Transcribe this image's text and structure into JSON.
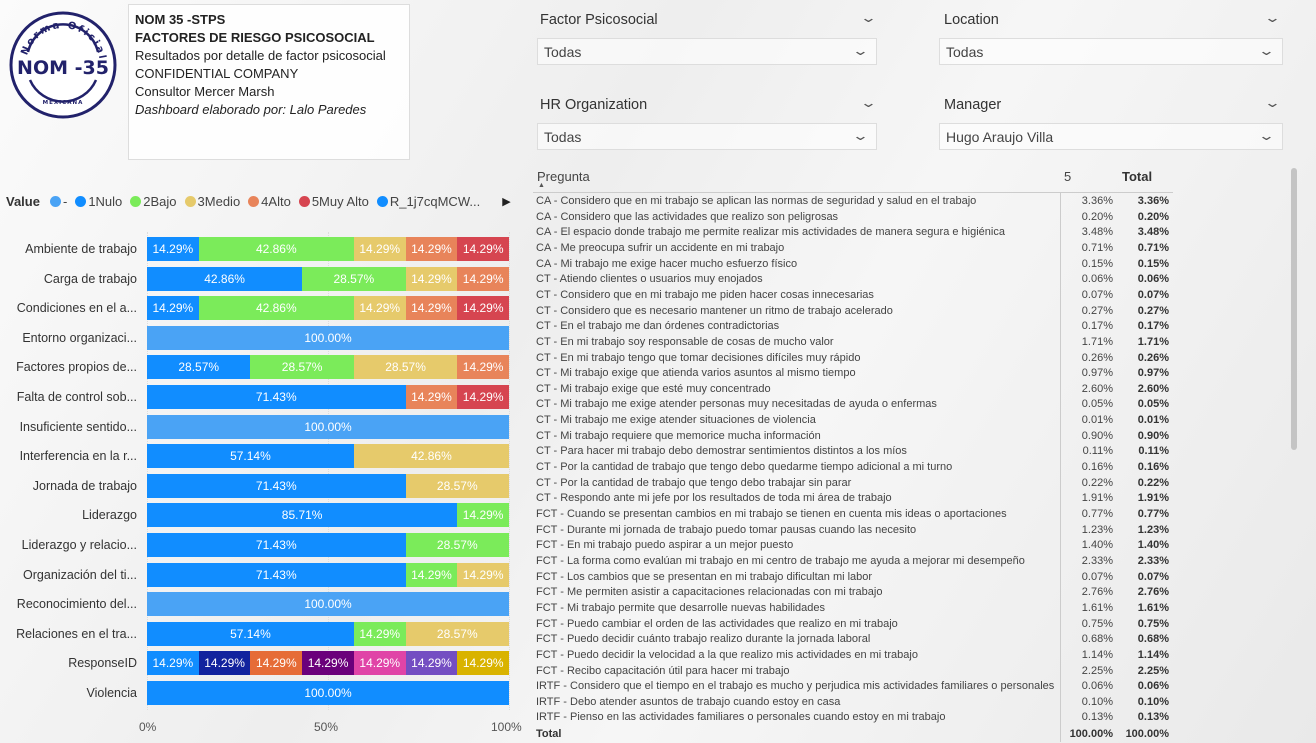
{
  "logo": {
    "text_top": "Norma Oficial",
    "text_main": "NOM -35",
    "text_bottom": "MEXICANA"
  },
  "header": {
    "line1": "NOM 35 -STPS",
    "line2": "FACTORES DE RIESGO PSICOSOCIAL",
    "line3": "Resultados por detalle de factor psicosocial",
    "line4": "CONFIDENTIAL COMPANY",
    "line5": "Consultor Mercer Marsh",
    "line6": "Dashboard elaborado por: Lalo Paredes"
  },
  "slicers": [
    {
      "title": "Factor Psicosocial",
      "value": "Todas"
    },
    {
      "title": "Location",
      "value": "Todas"
    },
    {
      "title": "HR Organization",
      "value": "Todas"
    },
    {
      "title": "Manager",
      "value": "Hugo Araujo Villa"
    }
  ],
  "chart_data": {
    "type": "bar",
    "orientation": "horizontal-100%-stacked",
    "legend_title": "Value",
    "legend": [
      {
        "name": "-",
        "color": "#4aa3f5"
      },
      {
        "name": "1Nulo",
        "color": "#118dff"
      },
      {
        "name": "2Bajo",
        "color": "#7beb5a"
      },
      {
        "name": "3Medio",
        "color": "#e6ca6b"
      },
      {
        "name": "4Alto",
        "color": "#e8845a"
      },
      {
        "name": "5Muy Alto",
        "color": "#d64550"
      },
      {
        "name": "R_1j7cqMCW...",
        "color": "#118dff"
      }
    ],
    "xticks": [
      "0%",
      "50%",
      "100%"
    ],
    "xlim": [
      0,
      100
    ],
    "rows": [
      {
        "category": "Ambiente de trabajo",
        "segments": [
          {
            "s": "1Nulo",
            "v": 14.29,
            "label": "14.29%"
          },
          {
            "s": "2Bajo",
            "v": 42.86,
            "label": "42.86%"
          },
          {
            "s": "3Medio",
            "v": 14.29,
            "label": "14.29%"
          },
          {
            "s": "4Alto",
            "v": 14.29,
            "label": "14.29%"
          },
          {
            "s": "5Muy Alto",
            "v": 14.29,
            "label": "14.29%"
          }
        ]
      },
      {
        "category": "Carga de trabajo",
        "segments": [
          {
            "s": "1Nulo",
            "v": 42.86,
            "label": "42.86%"
          },
          {
            "s": "2Bajo",
            "v": 28.57,
            "label": "28.57%"
          },
          {
            "s": "3Medio",
            "v": 14.29,
            "label": "14.29%"
          },
          {
            "s": "4Alto",
            "v": 14.29,
            "label": "14.29%"
          }
        ]
      },
      {
        "category": "Condiciones en el a...",
        "segments": [
          {
            "s": "1Nulo",
            "v": 14.29,
            "label": "14.29%"
          },
          {
            "s": "2Bajo",
            "v": 42.86,
            "label": "42.86%"
          },
          {
            "s": "3Medio",
            "v": 14.29,
            "label": "14.29%"
          },
          {
            "s": "4Alto",
            "v": 14.29,
            "label": "14.29%"
          },
          {
            "s": "5Muy Alto",
            "v": 14.29,
            "label": "14.29%"
          }
        ]
      },
      {
        "category": "Entorno organizaci...",
        "segments": [
          {
            "s": "-",
            "v": 100,
            "label": "100.00%"
          }
        ]
      },
      {
        "category": "Factores propios de...",
        "segments": [
          {
            "s": "1Nulo",
            "v": 28.57,
            "label": "28.57%"
          },
          {
            "s": "2Bajo",
            "v": 28.57,
            "label": "28.57%"
          },
          {
            "s": "3Medio",
            "v": 28.57,
            "label": "28.57%"
          },
          {
            "s": "4Alto",
            "v": 14.29,
            "label": "14.29%"
          }
        ]
      },
      {
        "category": "Falta de control sob...",
        "segments": [
          {
            "s": "1Nulo",
            "v": 71.43,
            "label": "71.43%"
          },
          {
            "s": "4Alto",
            "v": 14.29,
            "label": "14.29%"
          },
          {
            "s": "5Muy Alto",
            "v": 14.29,
            "label": "14.29%"
          }
        ]
      },
      {
        "category": "Insuficiente sentido...",
        "segments": [
          {
            "s": "-",
            "v": 100,
            "label": "100.00%"
          }
        ]
      },
      {
        "category": "Interferencia en la r...",
        "segments": [
          {
            "s": "1Nulo",
            "v": 57.14,
            "label": "57.14%"
          },
          {
            "s": "3Medio",
            "v": 42.86,
            "label": "42.86%"
          }
        ]
      },
      {
        "category": "Jornada de trabajo",
        "segments": [
          {
            "s": "1Nulo",
            "v": 71.43,
            "label": "71.43%"
          },
          {
            "s": "3Medio",
            "v": 28.57,
            "label": "28.57%"
          }
        ]
      },
      {
        "category": "Liderazgo",
        "segments": [
          {
            "s": "1Nulo",
            "v": 85.71,
            "label": "85.71%"
          },
          {
            "s": "2Bajo",
            "v": 14.29,
            "label": "14.29%"
          }
        ]
      },
      {
        "category": "Liderazgo y relacio...",
        "segments": [
          {
            "s": "1Nulo",
            "v": 71.43,
            "label": "71.43%"
          },
          {
            "s": "2Bajo",
            "v": 28.57,
            "label": "28.57%"
          }
        ]
      },
      {
        "category": "Organización del ti...",
        "segments": [
          {
            "s": "1Nulo",
            "v": 71.43,
            "label": "71.43%"
          },
          {
            "s": "2Bajo",
            "v": 14.29,
            "label": "14.29%"
          },
          {
            "s": "3Medio",
            "v": 14.29,
            "label": "14.29%"
          }
        ]
      },
      {
        "category": "Reconocimiento del...",
        "segments": [
          {
            "s": "-",
            "v": 100,
            "label": "100.00%"
          }
        ]
      },
      {
        "category": "Relaciones en el tra...",
        "segments": [
          {
            "s": "1Nulo",
            "v": 57.14,
            "label": "57.14%"
          },
          {
            "s": "2Bajo",
            "v": 14.29,
            "label": "14.29%"
          },
          {
            "s": "3Medio",
            "v": 28.57,
            "label": "28.57%"
          }
        ]
      },
      {
        "category": "ResponseID",
        "segments": [
          {
            "s": "r1",
            "v": 14.29,
            "label": "14.29%",
            "color": "#118dff"
          },
          {
            "s": "r2",
            "v": 14.29,
            "label": "14.29%",
            "color": "#12239e"
          },
          {
            "s": "r3",
            "v": 14.29,
            "label": "14.29%",
            "color": "#e66c37"
          },
          {
            "s": "r4",
            "v": 14.29,
            "label": "14.29%",
            "color": "#6b007b"
          },
          {
            "s": "r5",
            "v": 14.29,
            "label": "14.29%",
            "color": "#e044a7"
          },
          {
            "s": "r6",
            "v": 14.29,
            "label": "14.29%",
            "color": "#744ec2"
          },
          {
            "s": "r7",
            "v": 14.29,
            "label": "14.29%",
            "color": "#d9b300"
          }
        ]
      },
      {
        "category": "Violencia",
        "segments": [
          {
            "s": "1Nulo",
            "v": 100,
            "label": "100.00%"
          }
        ]
      }
    ]
  },
  "table": {
    "headers": {
      "pregunta": "Pregunta",
      "col5": "5",
      "total": "Total"
    },
    "rows": [
      [
        "CA - Considero que en mi trabajo se aplican las normas de seguridad y salud en el trabajo",
        "3.36%",
        "3.36%"
      ],
      [
        "CA - Considero que las actividades que realizo son peligrosas",
        "0.20%",
        "0.20%"
      ],
      [
        "CA - El espacio donde trabajo me permite realizar mis actividades de manera segura e higiénica",
        "3.48%",
        "3.48%"
      ],
      [
        "CA - Me preocupa sufrir un accidente en mi trabajo",
        "0.71%",
        "0.71%"
      ],
      [
        "CA - Mi trabajo me exige hacer mucho esfuerzo físico",
        "0.15%",
        "0.15%"
      ],
      [
        "CT - Atiendo clientes o usuarios muy enojados",
        "0.06%",
        "0.06%"
      ],
      [
        "CT - Considero que en mi trabajo me piden hacer cosas innecesarias",
        "0.07%",
        "0.07%"
      ],
      [
        "CT - Considero que es necesario mantener un ritmo de trabajo acelerado",
        "0.27%",
        "0.27%"
      ],
      [
        "CT - En el trabajo me dan órdenes contradictorias",
        "0.17%",
        "0.17%"
      ],
      [
        "CT - En mi trabajo soy responsable de cosas de mucho valor",
        "1.71%",
        "1.71%"
      ],
      [
        "CT - En mi trabajo tengo que tomar decisiones difíciles muy rápido",
        "0.26%",
        "0.26%"
      ],
      [
        "CT - Mi trabajo exige que atienda varios asuntos al mismo tiempo",
        "0.97%",
        "0.97%"
      ],
      [
        "CT - Mi trabajo exige que esté muy concentrado",
        "2.60%",
        "2.60%"
      ],
      [
        "CT - Mi trabajo me exige atender personas muy necesitadas de ayuda o enfermas",
        "0.05%",
        "0.05%"
      ],
      [
        "CT - Mi trabajo me exige atender situaciones de violencia",
        "0.01%",
        "0.01%"
      ],
      [
        "CT - Mi trabajo requiere que memorice mucha información",
        "0.90%",
        "0.90%"
      ],
      [
        "CT - Para hacer mi trabajo debo demostrar sentimientos distintos a los míos",
        "0.11%",
        "0.11%"
      ],
      [
        "CT - Por la cantidad de trabajo que tengo debo quedarme tiempo adicional a mi turno",
        "0.16%",
        "0.16%"
      ],
      [
        "CT - Por la cantidad de trabajo que tengo debo trabajar sin parar",
        "0.22%",
        "0.22%"
      ],
      [
        "CT - Respondo ante mi jefe por los resultados de toda mi área de trabajo",
        "1.91%",
        "1.91%"
      ],
      [
        "FCT - Cuando se presentan cambios en mi trabajo se tienen en cuenta mis ideas o aportaciones",
        "0.77%",
        "0.77%"
      ],
      [
        "FCT - Durante mi jornada de trabajo puedo tomar pausas cuando las necesito",
        "1.23%",
        "1.23%"
      ],
      [
        "FCT - En mi trabajo puedo aspirar a un mejor puesto",
        "1.40%",
        "1.40%"
      ],
      [
        "FCT - La forma como evalúan mi trabajo en mi centro de trabajo me ayuda a mejorar mi desempeño",
        "2.33%",
        "2.33%"
      ],
      [
        "FCT - Los cambios que se presentan en mi trabajo dificultan mi labor",
        "0.07%",
        "0.07%"
      ],
      [
        "FCT - Me permiten asistir a capacitaciones relacionadas con mi trabajo",
        "2.76%",
        "2.76%"
      ],
      [
        "FCT - Mi trabajo permite que desarrolle nuevas habilidades",
        "1.61%",
        "1.61%"
      ],
      [
        "FCT - Puedo cambiar el orden de las actividades que realizo en mi trabajo",
        "0.75%",
        "0.75%"
      ],
      [
        "FCT - Puedo decidir cuánto trabajo realizo durante la jornada laboral",
        "0.68%",
        "0.68%"
      ],
      [
        "FCT - Puedo decidir la velocidad a la que realizo mis actividades en mi trabajo",
        "1.14%",
        "1.14%"
      ],
      [
        "FCT - Recibo capacitación útil para hacer mi trabajo",
        "2.25%",
        "2.25%"
      ],
      [
        "IRTF - Considero que el tiempo en el trabajo es mucho y perjudica mis actividades familiares o personales",
        "0.06%",
        "0.06%"
      ],
      [
        "IRTF - Debo atender asuntos de trabajo cuando estoy en casa",
        "0.10%",
        "0.10%"
      ],
      [
        "IRTF - Pienso en las actividades familiares o personales cuando estoy en mi trabajo",
        "0.13%",
        "0.13%"
      ]
    ],
    "total": [
      "Total",
      "100.00%",
      "100.00%"
    ]
  }
}
